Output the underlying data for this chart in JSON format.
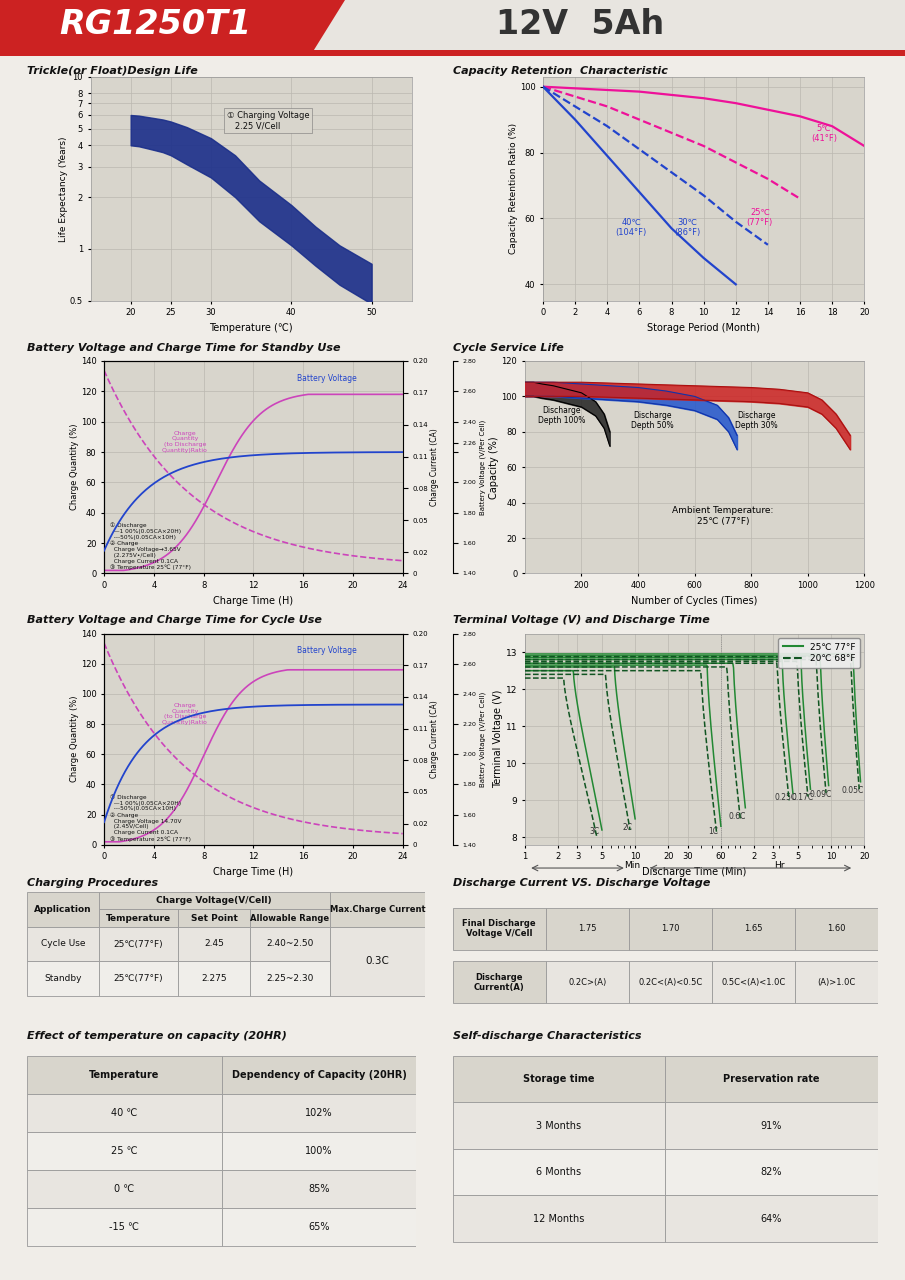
{
  "header_title": "RG1250T1",
  "header_subtitle": "12V  5Ah",
  "section_titles": [
    "Trickle(or Float)Design Life",
    "Capacity Retention  Characteristic",
    "Battery Voltage and Charge Time for Standby Use",
    "Cycle Service Life",
    "Battery Voltage and Charge Time for Cycle Use",
    "Terminal Voltage (V) and Discharge Time",
    "Charging Procedures",
    "Discharge Current VS. Discharge Voltage",
    "Effect of temperature on capacity (20HR)",
    "Self-discharge Characteristics"
  ],
  "page_bg": "#f0ede8",
  "plot_bg": "#d8d5cc",
  "grid_color": "#bbb8b0"
}
